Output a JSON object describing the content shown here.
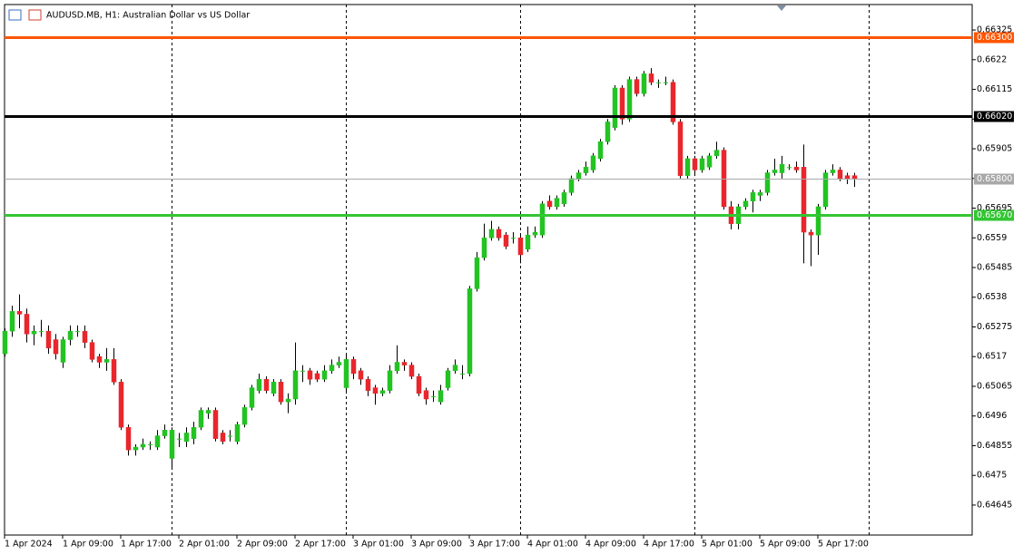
{
  "chart_data": {
    "type": "candlestick",
    "title": "AUDUSD.MB, H1:  Australian Dollar vs US Dollar",
    "categories": [
      "1 Apr 2024",
      null,
      null,
      null,
      null,
      null,
      null,
      null,
      "1 Apr 09:00",
      null,
      null,
      null,
      null,
      null,
      null,
      null,
      "1 Apr 17:00",
      null,
      null,
      null,
      null,
      null,
      null,
      null,
      "2 Apr 01:00",
      null,
      null,
      null,
      null,
      null,
      null,
      null,
      "2 Apr 09:00",
      null,
      null,
      null,
      null,
      null,
      null,
      null,
      "2 Apr 17:00",
      null,
      null,
      null,
      null,
      null,
      null,
      null,
      "3 Apr 01:00",
      null,
      null,
      null,
      null,
      null,
      null,
      null,
      "3 Apr 09:00",
      null,
      null,
      null,
      null,
      null,
      null,
      null,
      "3 Apr 17:00",
      null,
      null,
      null,
      null,
      null,
      null,
      null,
      "4 Apr 01:00",
      null,
      null,
      null,
      null,
      null,
      null,
      null,
      "4 Apr 09:00",
      null,
      null,
      null,
      null,
      null,
      null,
      null,
      "4 Apr 17:00",
      null,
      null,
      null,
      null,
      null,
      null,
      null,
      "5 Apr 01:00",
      null,
      null,
      null,
      null,
      null,
      null,
      null,
      "5 Apr 09:00",
      null,
      null,
      null,
      null,
      null,
      null,
      null,
      "5 Apr 17:00",
      null,
      null,
      null,
      null,
      null
    ],
    "open": [
      0.6518,
      0.6526,
      0.6533,
      0.6532,
      0.6525,
      0.6526,
      0.6526,
      0.6523,
      0.6515,
      0.6523,
      0.6526,
      0.6526,
      0.6522,
      0.6517,
      0.6515,
      0.6516,
      0.6508,
      0.6492,
      0.6484,
      0.6485,
      0.6486,
      0.6485,
      0.6489,
      0.6481,
      0.6488,
      0.6487,
      0.6488,
      0.6492,
      0.6497,
      0.6498,
      0.649,
      0.6489,
      0.6487,
      0.6493,
      0.6499,
      0.6505,
      0.6509,
      0.6504,
      0.6508,
      0.6501,
      0.6502,
      0.6512,
      0.6512,
      0.6511,
      0.6509,
      0.6512,
      0.6514,
      0.6506,
      0.6516,
      0.6512,
      0.6509,
      0.6506,
      0.6504,
      0.6505,
      0.6512,
      0.6515,
      0.6514,
      0.651,
      0.6505,
      0.6503,
      0.6501,
      0.6506,
      0.6512,
      0.6511,
      0.6511,
      0.6541,
      0.6552,
      0.6559,
      0.6562,
      0.656,
      0.6559,
      0.6559,
      0.6555,
      0.656,
      0.656,
      0.6572,
      0.657,
      0.6571,
      0.6575,
      0.658,
      0.6582,
      0.6583,
      0.6587,
      0.6593,
      0.6598,
      0.6612,
      0.6601,
      0.6615,
      0.661,
      0.6617,
      0.6614,
      0.6614,
      0.6614,
      0.66,
      0.6581,
      0.6587,
      0.6583,
      0.6584,
      0.6588,
      0.659,
      0.657,
      0.6564,
      0.657,
      0.6572,
      0.6574,
      0.6575,
      0.6582,
      0.6582,
      0.6584,
      0.6584,
      0.6584,
      0.6561,
      0.656,
      0.657,
      0.6582,
      0.6583,
      0.6581,
      0.6581
    ],
    "high": [
      0.6527,
      0.6535,
      0.6539,
      0.6534,
      0.6528,
      0.653,
      0.6528,
      0.6525,
      0.6524,
      0.6528,
      0.6528,
      0.6528,
      0.6523,
      0.6518,
      0.652,
      0.652,
      0.6509,
      0.6493,
      0.6486,
      0.6488,
      0.6487,
      0.6491,
      0.6493,
      0.6492,
      0.649,
      0.6492,
      0.6494,
      0.6499,
      0.6499,
      0.6499,
      0.6491,
      0.6491,
      0.6494,
      0.65,
      0.6507,
      0.6511,
      0.651,
      0.6509,
      0.6509,
      0.6504,
      0.6522,
      0.6514,
      0.6513,
      0.6512,
      0.6514,
      0.6516,
      0.6517,
      0.6518,
      0.6517,
      0.6513,
      0.651,
      0.6507,
      0.6506,
      0.6514,
      0.6521,
      0.6516,
      0.6515,
      0.6511,
      0.6506,
      0.6505,
      0.6507,
      0.6513,
      0.6516,
      0.6514,
      0.6542,
      0.6554,
      0.6564,
      0.6565,
      0.6563,
      0.6561,
      0.6561,
      0.656,
      0.6563,
      0.6563,
      0.6572,
      0.6574,
      0.6574,
      0.6576,
      0.6581,
      0.6583,
      0.6586,
      0.6589,
      0.6594,
      0.6601,
      0.6613,
      0.6613,
      0.6616,
      0.6616,
      0.6618,
      0.6619,
      0.6615,
      0.6616,
      0.6615,
      0.6601,
      0.6588,
      0.6588,
      0.6588,
      0.6589,
      0.6593,
      0.6591,
      0.6572,
      0.6571,
      0.6573,
      0.6576,
      0.6576,
      0.6583,
      0.6587,
      0.6588,
      0.6585,
      0.6586,
      0.6592,
      0.6562,
      0.6571,
      0.6583,
      0.6585,
      0.6584,
      0.6582,
      0.6582
    ],
    "low": [
      0.6517,
      0.6524,
      0.6527,
      0.6522,
      0.6521,
      0.6524,
      0.6518,
      0.6516,
      0.6513,
      0.6521,
      0.6524,
      0.652,
      0.6515,
      0.6513,
      0.6512,
      0.6507,
      0.6491,
      0.6482,
      0.6482,
      0.6484,
      0.6484,
      0.6484,
      0.6488,
      0.6477,
      0.6485,
      0.6485,
      0.6486,
      0.6491,
      0.6495,
      0.6487,
      0.6486,
      0.6487,
      0.6486,
      0.6492,
      0.6498,
      0.6504,
      0.6504,
      0.6503,
      0.65,
      0.6497,
      0.65,
      0.6508,
      0.6507,
      0.6508,
      0.6508,
      0.6511,
      0.6513,
      0.6504,
      0.6509,
      0.6507,
      0.6503,
      0.65,
      0.6503,
      0.6504,
      0.6511,
      0.6512,
      0.6509,
      0.6503,
      0.65,
      0.6501,
      0.65,
      0.6505,
      0.6511,
      0.6509,
      0.651,
      0.654,
      0.6551,
      0.6558,
      0.6558,
      0.6555,
      0.6557,
      0.655,
      0.6554,
      0.6559,
      0.6559,
      0.6569,
      0.6569,
      0.657,
      0.6574,
      0.6579,
      0.6581,
      0.6582,
      0.6586,
      0.6592,
      0.6597,
      0.6599,
      0.66,
      0.6609,
      0.6609,
      0.6613,
      0.6612,
      0.6613,
      0.6599,
      0.658,
      0.658,
      0.6581,
      0.6582,
      0.6583,
      0.6587,
      0.6569,
      0.6562,
      0.6562,
      0.6569,
      0.6568,
      0.6572,
      0.6574,
      0.6581,
      0.658,
      0.6583,
      0.6582,
      0.655,
      0.6549,
      0.6553,
      0.6569,
      0.6581,
      0.6579,
      0.6578,
      0.6577
    ],
    "close": [
      0.6526,
      0.6533,
      0.6532,
      0.6525,
      0.6526,
      0.6526,
      0.652,
      0.6518,
      0.6523,
      0.6526,
      0.6526,
      0.6522,
      0.6516,
      0.6515,
      0.6516,
      0.6508,
      0.6492,
      0.6484,
      0.6485,
      0.6486,
      0.6486,
      0.6489,
      0.6491,
      0.6491,
      0.6488,
      0.649,
      0.6492,
      0.6498,
      0.6498,
      0.6488,
      0.6487,
      0.6489,
      0.6493,
      0.6499,
      0.6506,
      0.6509,
      0.6505,
      0.6508,
      0.6501,
      0.6502,
      0.6512,
      0.6512,
      0.6509,
      0.6509,
      0.6512,
      0.6514,
      0.6515,
      0.6516,
      0.6511,
      0.6509,
      0.6505,
      0.6504,
      0.6505,
      0.6512,
      0.6515,
      0.6514,
      0.651,
      0.6504,
      0.6502,
      0.6503,
      0.6505,
      0.6512,
      0.6514,
      0.6511,
      0.6541,
      0.6552,
      0.6559,
      0.6562,
      0.6559,
      0.6556,
      0.6559,
      0.6553,
      0.656,
      0.6561,
      0.6571,
      0.657,
      0.6573,
      0.6575,
      0.658,
      0.6582,
      0.6584,
      0.6588,
      0.6593,
      0.66,
      0.6612,
      0.6601,
      0.6615,
      0.661,
      0.6617,
      0.6614,
      0.6614,
      0.6614,
      0.66,
      0.6581,
      0.6587,
      0.6583,
      0.6587,
      0.6588,
      0.659,
      0.657,
      0.6564,
      0.657,
      0.6572,
      0.6575,
      0.6575,
      0.6582,
      0.6583,
      0.6585,
      0.6584,
      0.6583,
      0.6561,
      0.656,
      0.657,
      0.6582,
      0.6583,
      0.658,
      0.658,
      0.658
    ],
    "up_color": "#22c322",
    "down_color": "#e8262c",
    "ylim": [
      0.64539,
      0.66415
    ],
    "yticks": [
      0.66325,
      0.6622,
      0.66115,
      0.6601,
      0.65905,
      0.658,
      0.65695,
      0.6559,
      0.65485,
      0.6538,
      0.65275,
      0.6517,
      0.65065,
      0.6496,
      0.64855,
      0.6475,
      0.64645
    ],
    "price_lines": [
      {
        "value": 0.663,
        "label": "0.66300",
        "color": "#ff5500"
      },
      {
        "value": 0.6602,
        "label": "0.66020",
        "color": "#000000"
      },
      {
        "value": 0.658,
        "label": "0.65800",
        "color": "#a8a8a8"
      },
      {
        "value": 0.6567,
        "label": "0.65670",
        "color": "#33c633"
      }
    ]
  }
}
